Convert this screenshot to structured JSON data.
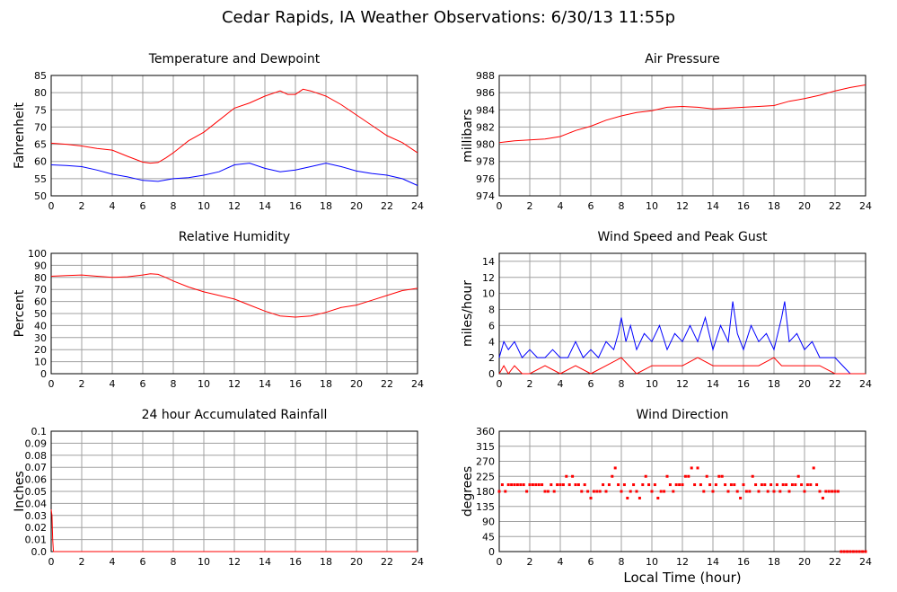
{
  "title": "Cedar Rapids, IA Weather Observations: 6/30/13 11:55p",
  "xaxis_label": "Local Time (hour)",
  "colors": {
    "red": "#ff0000",
    "blue": "#0000ff",
    "grid": "#a0a0a0",
    "frame": "#000000"
  },
  "chart_data": [
    {
      "type": "line",
      "title": "Temperature and Dewpoint",
      "ylabel": "Fahrenheit",
      "xlim": [
        0,
        24
      ],
      "ylim": [
        50,
        85
      ],
      "x_ticks": [
        0,
        2,
        4,
        6,
        8,
        10,
        12,
        14,
        16,
        18,
        20,
        22,
        24
      ],
      "y_ticks": [
        50,
        55,
        60,
        65,
        70,
        75,
        80,
        85
      ],
      "grid": true,
      "series": [
        {
          "color": "#ff0000",
          "x": [
            0,
            1,
            2,
            3,
            4,
            5,
            6,
            6.5,
            7,
            7.5,
            8,
            9,
            10,
            11,
            12,
            13,
            14,
            15,
            15.5,
            16,
            16.5,
            17,
            18,
            19,
            20,
            21,
            22,
            23,
            24
          ],
          "y": [
            65.3,
            65,
            64.5,
            63.8,
            63.3,
            61.5,
            59.8,
            59.5,
            59.7,
            61,
            62.5,
            66,
            68.5,
            72,
            75.5,
            77,
            79,
            80.5,
            79.5,
            79.5,
            81,
            80.5,
            79,
            76.5,
            73.5,
            70.5,
            67.5,
            65.5,
            62.5
          ]
        },
        {
          "color": "#0000ff",
          "x": [
            0,
            1,
            2,
            3,
            4,
            5,
            6,
            7,
            8,
            9,
            10,
            11,
            12,
            13,
            14,
            15,
            16,
            17,
            18,
            19,
            20,
            21,
            22,
            23,
            24
          ],
          "y": [
            59,
            58.8,
            58.5,
            57.5,
            56.3,
            55.5,
            54.5,
            54.2,
            55,
            55.3,
            56,
            57,
            59,
            59.5,
            58,
            57,
            57.5,
            58.5,
            59.5,
            58.5,
            57.2,
            56.5,
            56,
            55,
            53
          ]
        }
      ]
    },
    {
      "type": "line",
      "title": "Air Pressure",
      "ylabel": "millibars",
      "xlim": [
        0,
        24
      ],
      "ylim": [
        974,
        988
      ],
      "x_ticks": [
        0,
        2,
        4,
        6,
        8,
        10,
        12,
        14,
        16,
        18,
        20,
        22,
        24
      ],
      "y_ticks": [
        974,
        976,
        978,
        980,
        982,
        984,
        986,
        988
      ],
      "grid": true,
      "series": [
        {
          "color": "#ff0000",
          "x": [
            0,
            1,
            2,
            3,
            4,
            5,
            6,
            7,
            8,
            9,
            10,
            11,
            12,
            13,
            14,
            15,
            16,
            17,
            18,
            19,
            20,
            21,
            22,
            23,
            24
          ],
          "y": [
            980.2,
            980.4,
            980.5,
            980.6,
            980.9,
            981.6,
            982.1,
            982.8,
            983.3,
            983.7,
            983.9,
            984.3,
            984.4,
            984.3,
            984.1,
            984.2,
            984.3,
            984.4,
            984.5,
            985,
            985.3,
            985.7,
            986.2,
            986.6,
            986.9
          ]
        }
      ]
    },
    {
      "type": "line",
      "title": "Relative Humidity",
      "ylabel": "Percent",
      "xlim": [
        0,
        24
      ],
      "ylim": [
        0,
        100
      ],
      "x_ticks": [
        0,
        2,
        4,
        6,
        8,
        10,
        12,
        14,
        16,
        18,
        20,
        22,
        24
      ],
      "y_ticks": [
        0,
        10,
        20,
        30,
        40,
        50,
        60,
        70,
        80,
        90,
        100
      ],
      "grid": true,
      "series": [
        {
          "color": "#ff0000",
          "x": [
            0,
            1,
            2,
            3,
            4,
            5,
            6,
            6.5,
            7,
            7.5,
            8,
            9,
            10,
            11,
            12,
            13,
            14,
            15,
            16,
            17,
            18,
            19,
            20,
            21,
            22,
            23,
            24
          ],
          "y": [
            81,
            81.5,
            82,
            81,
            80,
            80.5,
            82,
            83,
            82.5,
            80,
            77,
            72,
            68,
            65,
            62,
            57,
            52,
            48,
            47,
            48,
            51,
            55,
            57,
            61,
            65,
            69,
            71
          ]
        }
      ]
    },
    {
      "type": "line",
      "title": "Wind Speed and Peak Gust",
      "ylabel": "miles/hour",
      "xlim": [
        0,
        24
      ],
      "ylim": [
        0,
        15
      ],
      "x_ticks": [
        0,
        2,
        4,
        6,
        8,
        10,
        12,
        14,
        16,
        18,
        20,
        22,
        24
      ],
      "y_ticks": [
        0,
        2,
        4,
        6,
        8,
        10,
        12,
        14
      ],
      "grid": true,
      "series": [
        {
          "color": "#0000ff",
          "x": [
            0,
            0.3,
            0.6,
            1,
            1.5,
            2,
            2.5,
            3,
            3.5,
            4,
            4.5,
            5,
            5.5,
            6,
            6.5,
            7,
            7.5,
            7.8,
            8,
            8.3,
            8.6,
            9,
            9.5,
            10,
            10.5,
            11,
            11.5,
            12,
            12.5,
            13,
            13.5,
            14,
            14.5,
            15,
            15.3,
            15.6,
            16,
            16.5,
            17,
            17.5,
            18,
            18.5,
            18.7,
            19,
            19.5,
            20,
            20.5,
            21,
            21.5,
            22,
            22.5,
            23,
            24
          ],
          "y": [
            2,
            4,
            3,
            4,
            2,
            3,
            2,
            2,
            3,
            2,
            2,
            4,
            2,
            3,
            2,
            4,
            3,
            5,
            7,
            4,
            6,
            3,
            5,
            4,
            6,
            3,
            5,
            4,
            6,
            4,
            7,
            3,
            6,
            4,
            9,
            5,
            3,
            6,
            4,
            5,
            3,
            7,
            9,
            4,
            5,
            3,
            4,
            2,
            2,
            2,
            1,
            0,
            0
          ]
        },
        {
          "color": "#ff0000",
          "x": [
            0,
            0.3,
            0.6,
            1,
            1.5,
            2,
            3,
            4,
            5,
            6,
            7,
            8,
            8.5,
            9,
            10,
            11,
            12,
            13,
            14,
            15,
            16,
            17,
            18,
            18.5,
            19,
            20,
            21,
            22,
            23,
            24
          ],
          "y": [
            0,
            1,
            0,
            1,
            0,
            0,
            1,
            0,
            1,
            0,
            1,
            2,
            1,
            0,
            1,
            1,
            1,
            2,
            1,
            1,
            1,
            1,
            2,
            1,
            1,
            1,
            1,
            0,
            0,
            0
          ]
        }
      ]
    },
    {
      "type": "line",
      "title": "24 hour Accumulated Rainfall",
      "ylabel": "Inches",
      "xlim": [
        0,
        24
      ],
      "ylim": [
        0,
        0.1
      ],
      "x_ticks": [
        0,
        2,
        4,
        6,
        8,
        10,
        12,
        14,
        16,
        18,
        20,
        22,
        24
      ],
      "y_ticks": [
        0.0,
        0.01,
        0.02,
        0.03,
        0.04,
        0.05,
        0.06,
        0.07,
        0.08,
        0.09,
        0.1
      ],
      "y_tick_labels": [
        "0.0",
        "0.01",
        "0.02",
        "0.03",
        "0.04",
        "0.05",
        "0.06",
        "0.07",
        "0.08",
        "0.09",
        "0.1"
      ],
      "grid": true,
      "series": [
        {
          "color": "#ff0000",
          "x": [
            0,
            0.05,
            0.1,
            0.15,
            24
          ],
          "y": [
            0.035,
            0.03,
            0.01,
            0,
            0
          ]
        }
      ]
    },
    {
      "type": "scatter",
      "title": "Wind Direction",
      "ylabel": "degrees",
      "xlim": [
        0,
        24
      ],
      "ylim": [
        0,
        360
      ],
      "x_ticks": [
        0,
        2,
        4,
        6,
        8,
        10,
        12,
        14,
        16,
        18,
        20,
        22,
        24
      ],
      "y_ticks": [
        0,
        45,
        90,
        135,
        180,
        225,
        270,
        315,
        360
      ],
      "grid": true,
      "series": [
        {
          "color": "#ff0000",
          "x": [
            0,
            0.2,
            0.4,
            0.6,
            0.8,
            1,
            1.2,
            1.4,
            1.6,
            1.8,
            2,
            2.2,
            2.4,
            2.6,
            2.8,
            3,
            3.2,
            3.4,
            3.6,
            3.8,
            4,
            4.2,
            4.4,
            4.6,
            4.8,
            5,
            5.2,
            5.4,
            5.6,
            5.8,
            6,
            6.2,
            6.4,
            6.6,
            6.8,
            7,
            7.2,
            7.4,
            7.6,
            7.8,
            8,
            8.2,
            8.4,
            8.6,
            8.8,
            9,
            9.2,
            9.4,
            9.6,
            9.8,
            10,
            10.2,
            10.4,
            10.6,
            10.8,
            11,
            11.2,
            11.4,
            11.6,
            11.8,
            12,
            12.2,
            12.4,
            12.6,
            12.8,
            13,
            13.2,
            13.4,
            13.6,
            13.8,
            14,
            14.2,
            14.4,
            14.6,
            14.8,
            15,
            15.2,
            15.4,
            15.6,
            15.8,
            16,
            16.2,
            16.4,
            16.6,
            16.8,
            17,
            17.2,
            17.4,
            17.6,
            17.8,
            18,
            18.2,
            18.4,
            18.6,
            18.8,
            19,
            19.2,
            19.4,
            19.6,
            19.8,
            20,
            20.2,
            20.4,
            20.6,
            20.8,
            21,
            21.2,
            21.4,
            21.6,
            21.8,
            22,
            22.2,
            22.4,
            22.6,
            22.8,
            23,
            23.2,
            23.4,
            23.6,
            23.8,
            24
          ],
          "y": [
            180,
            200,
            180,
            200,
            200,
            200,
            200,
            200,
            200,
            180,
            200,
            200,
            200,
            200,
            200,
            180,
            180,
            200,
            180,
            200,
            200,
            200,
            225,
            200,
            225,
            200,
            200,
            180,
            200,
            180,
            160,
            180,
            180,
            180,
            200,
            180,
            200,
            225,
            250,
            200,
            180,
            200,
            160,
            180,
            200,
            180,
            160,
            200,
            225,
            200,
            180,
            200,
            160,
            180,
            180,
            225,
            200,
            180,
            200,
            200,
            200,
            225,
            225,
            250,
            200,
            250,
            200,
            180,
            225,
            200,
            180,
            200,
            225,
            225,
            200,
            180,
            200,
            200,
            180,
            160,
            200,
            180,
            180,
            225,
            200,
            180,
            200,
            200,
            180,
            200,
            180,
            200,
            180,
            200,
            200,
            180,
            200,
            200,
            225,
            200,
            180,
            200,
            200,
            250,
            200,
            180,
            160,
            180,
            180,
            180,
            180,
            180,
            0,
            0,
            0,
            0,
            0,
            0,
            0,
            0,
            0
          ]
        }
      ]
    }
  ]
}
